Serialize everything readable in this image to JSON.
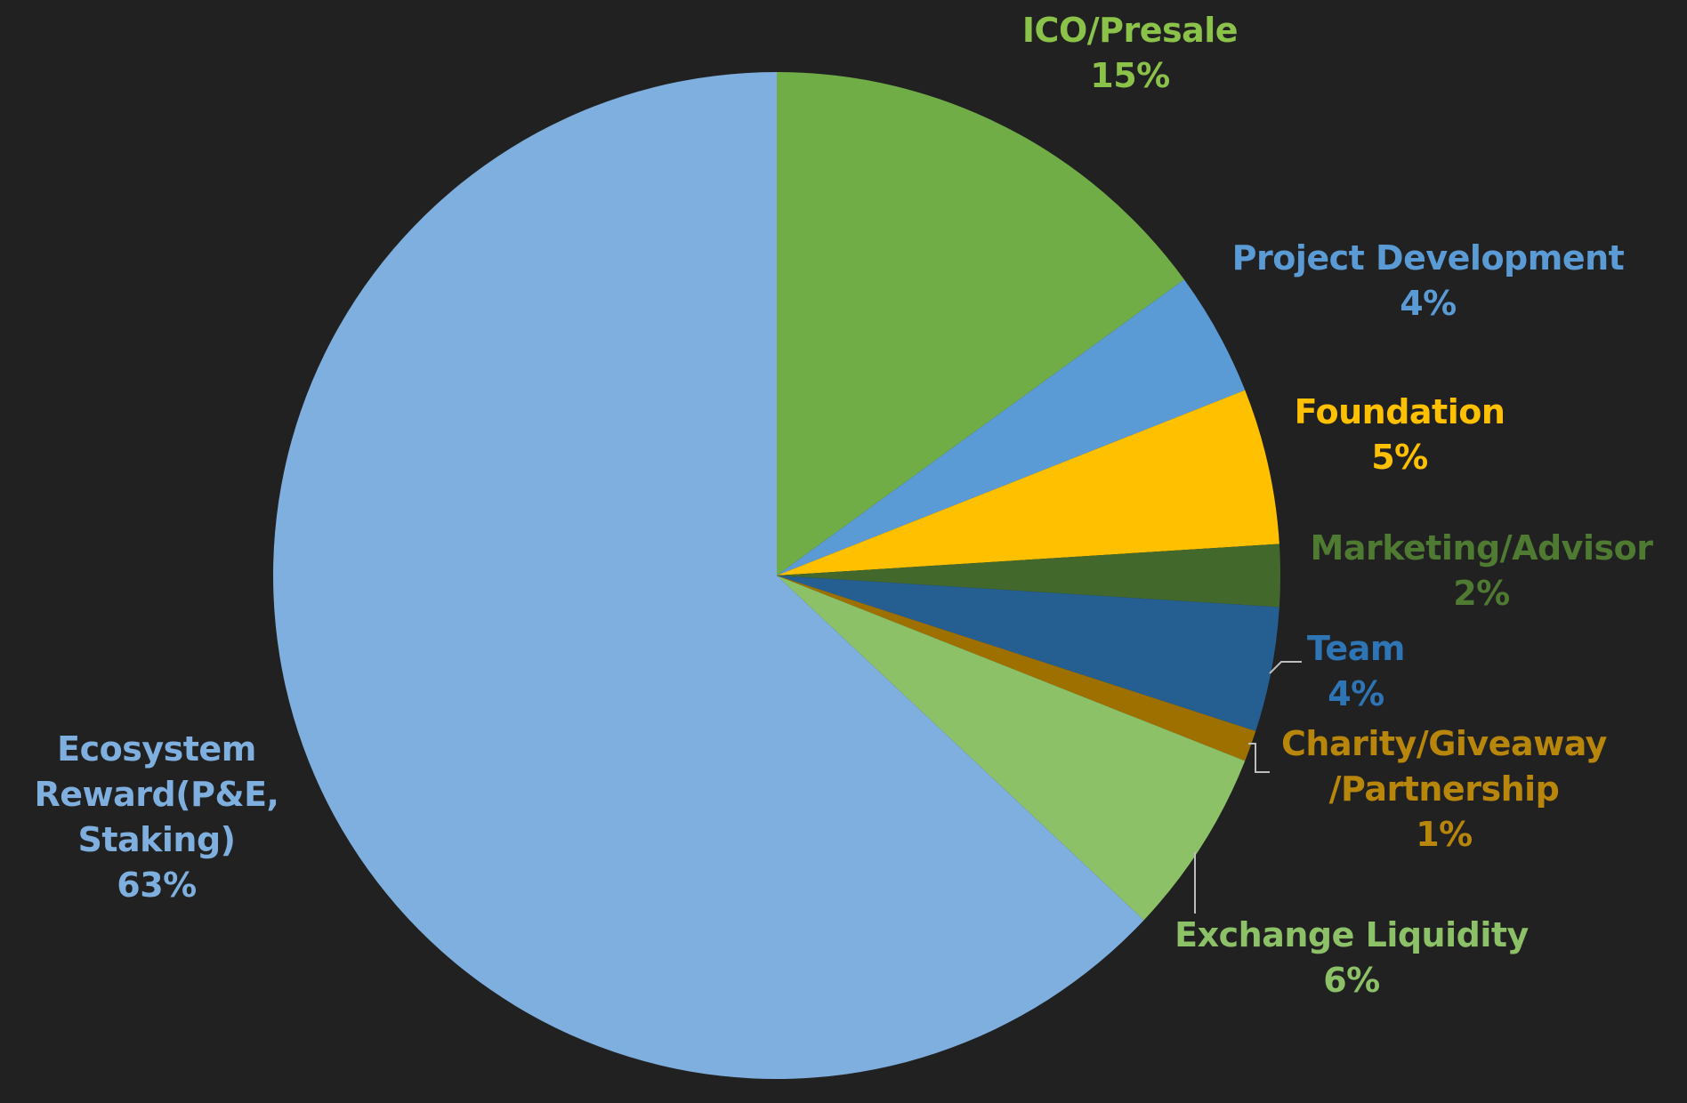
{
  "chart_data": {
    "type": "pie",
    "title": "",
    "start_angle_deg": 0,
    "direction": "clockwise",
    "slices": [
      {
        "label": "ICO/Presale",
        "value": 15,
        "value_label": "15%",
        "color": "#70AD47",
        "label_color": "#8BC34A"
      },
      {
        "label": "Project Development",
        "value": 4,
        "value_label": "4%",
        "color": "#5B9BD5",
        "label_color": "#5B9BD5"
      },
      {
        "label": "Foundation",
        "value": 5,
        "value_label": "5%",
        "color": "#FFC000",
        "label_color": "#FFC000"
      },
      {
        "label": "Marketing/Advisor",
        "value": 2,
        "value_label": "2%",
        "color": "#43682B",
        "label_color": "#4E7A31"
      },
      {
        "label": "Team",
        "value": 4,
        "value_label": "4%",
        "color": "#255E91",
        "label_color": "#2E75B6"
      },
      {
        "label": "Charity/Giveaway /Partnership",
        "value": 1,
        "value_label": "1%",
        "color": "#9E7000",
        "label_color": "#B8860B"
      },
      {
        "label": "Exchange Liquidity",
        "value": 6,
        "value_label": "6%",
        "color": "#8CC168",
        "label_color": "#8CC168"
      },
      {
        "label": "Ecosystem Reward(P&E, Staking)",
        "value": 63,
        "value_label": "63%",
        "color": "#7EAFDF",
        "label_color": "#7EAFDF"
      }
    ]
  }
}
